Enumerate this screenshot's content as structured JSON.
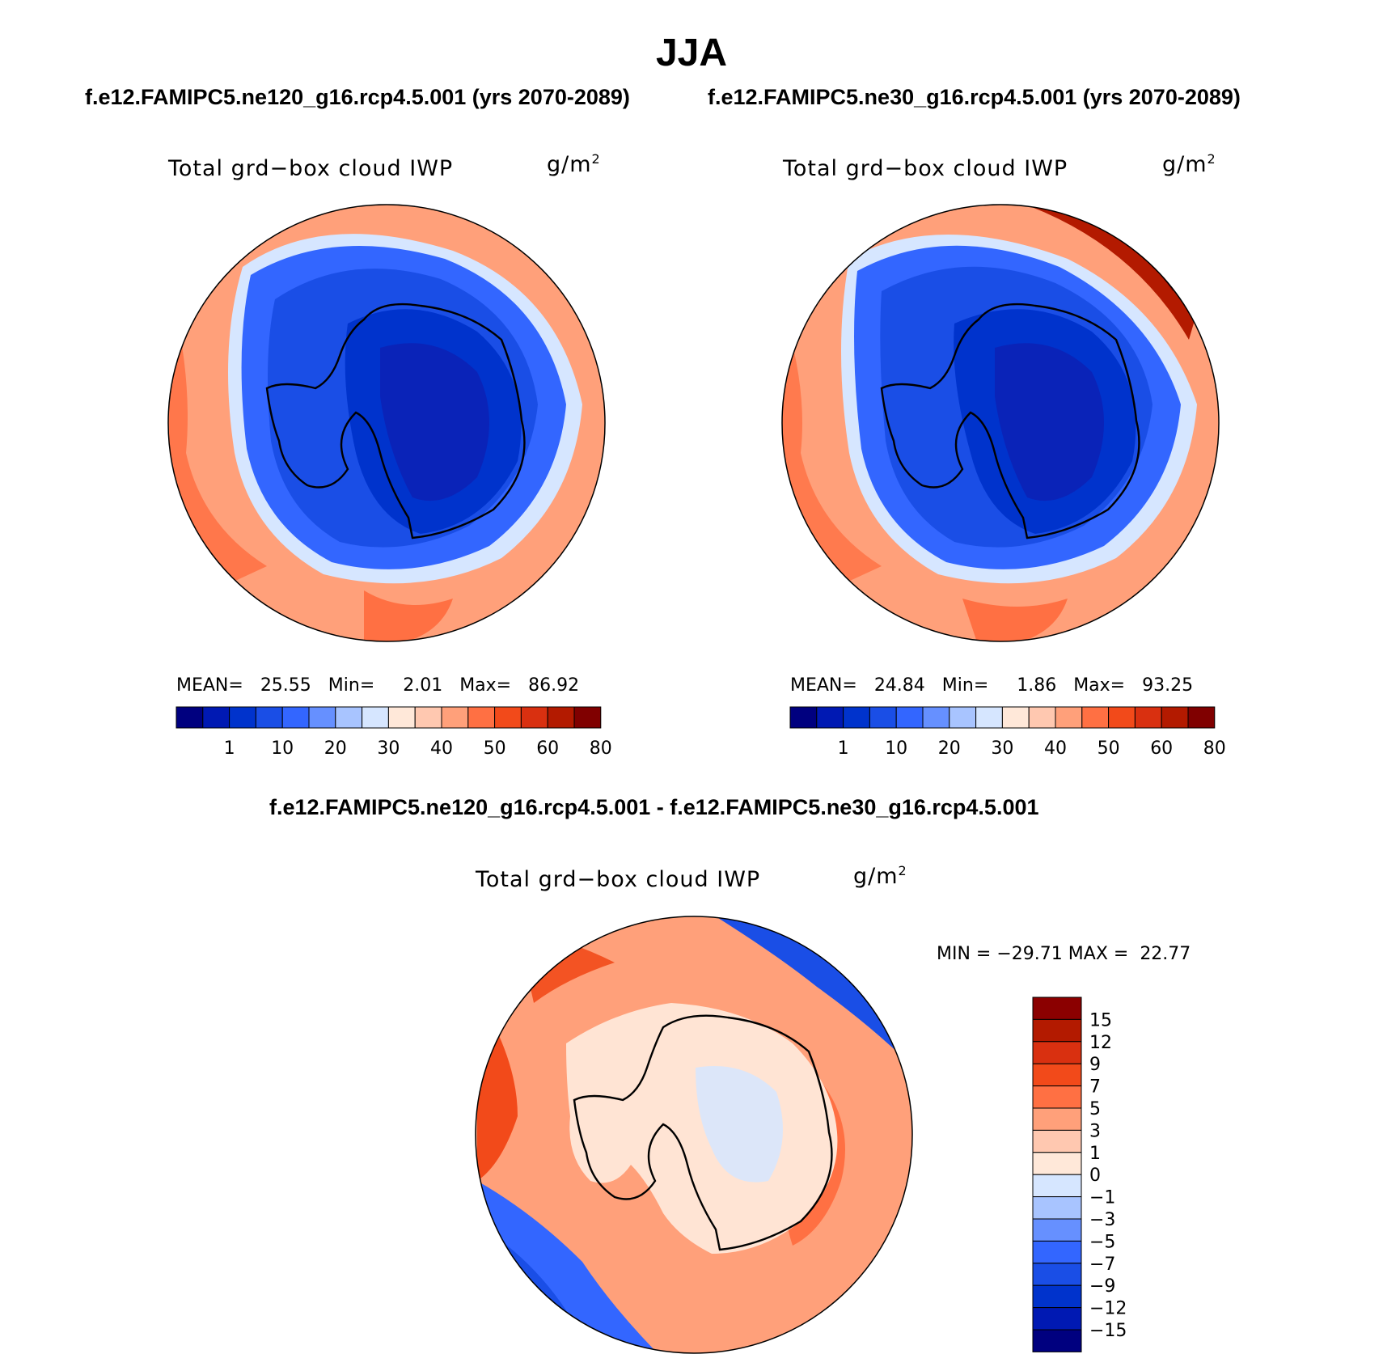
{
  "title": "JJA",
  "subtitle_left": "f.e12.FAMIPC5.ne120_g16.rcp4.5.001 (yrs 2070-2089)",
  "subtitle_right": "f.e12.FAMIPC5.ne30_g16.rcp4.5.001 (yrs 2070-2089)",
  "diff_title": "f.e12.FAMIPC5.ne120_g16.rcp4.5.001 - f.e12.FAMIPC5.ne30_g16.rcp4.5.001",
  "variable": "Total grd−box cloud IWP",
  "units": "g/m",
  "units_sup": "2",
  "panel_left": {
    "mean_label": "MEAN=",
    "mean": "25.55",
    "min_label": "Min=",
    "min": "2.01",
    "max_label": "Max=",
    "max": "86.92"
  },
  "panel_right": {
    "mean_label": "MEAN=",
    "mean": "24.84",
    "min_label": "Min=",
    "min": "1.86",
    "max_label": "Max=",
    "max": "93.25"
  },
  "panel_diff": {
    "min_label": "MIN =",
    "min": "−29.71",
    "max_label": "MAX =",
    "max": "22.77"
  },
  "colorbar_abs": {
    "labels": [
      "1",
      "10",
      "20",
      "30",
      "40",
      "50",
      "60",
      "80"
    ],
    "colors": [
      "#00007f",
      "#0019b3",
      "#0033cc",
      "#1a4ee6",
      "#3366ff",
      "#6690ff",
      "#a8c4ff",
      "#d6e6ff",
      "#ffe8d9",
      "#ffc8b0",
      "#ffa07a",
      "#ff7043",
      "#f24a1a",
      "#d93010",
      "#b31a00",
      "#800000"
    ]
  },
  "colorbar_diff": {
    "labels": [
      "15",
      "12",
      "9",
      "7",
      "5",
      "3",
      "1",
      "0",
      "−1",
      "−3",
      "−5",
      "−7",
      "−9",
      "−12",
      "−15"
    ],
    "colors": [
      "#8b0000",
      "#b31a00",
      "#d93010",
      "#f24a1a",
      "#ff7043",
      "#ffa07a",
      "#ffc8b0",
      "#ffe8d9",
      "#d6e6ff",
      "#a8c4ff",
      "#6690ff",
      "#3366ff",
      "#1a4ee6",
      "#0033cc",
      "#0019b3",
      "#00007f"
    ]
  },
  "map_colors": {
    "ocean_warm": "#ff7a4d",
    "ocean_light": "#ffb08c",
    "ring_cool": "#1a4ee6",
    "land_deep": "#0a23b8",
    "diff_warm": "#ffa07a",
    "diff_hot": "#f24a1a",
    "diff_land": "#ffe4d4",
    "diff_cool": "#1a4ee6",
    "diff_deep": "#00007f"
  }
}
